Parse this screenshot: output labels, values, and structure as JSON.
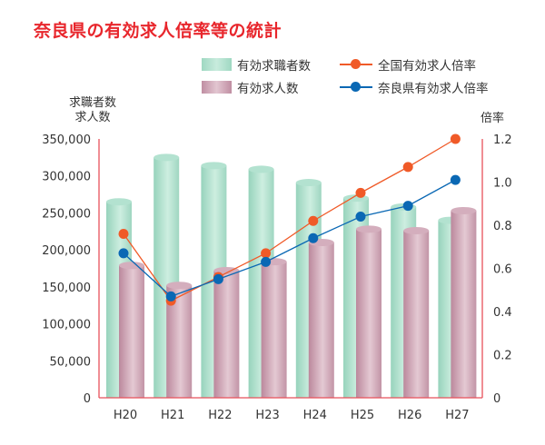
{
  "title": "奈良県の有効求人倍率等の統計",
  "legend": {
    "seekers": "有効求職者数",
    "openings": "有効求人数",
    "national_ratio": "全国有効求人倍率",
    "nara_ratio": "奈良県有効求人倍率"
  },
  "axis_titles": {
    "left_line1": "求職者数",
    "left_line2": "求人数",
    "right": "倍率"
  },
  "colors": {
    "title": "#e8262c",
    "axis": "#e8505a",
    "seekers": "#a8dcc8",
    "openings": "#c9a0b0",
    "national_ratio": "#f05a28",
    "nara_ratio": "#0a68b4"
  },
  "chart_data": {
    "type": "bar",
    "title": "奈良県の有効求人倍率等の統計",
    "xlabel": "",
    "ylabel": "求職者数 求人数",
    "y2label": "倍率",
    "categories": [
      "H20",
      "H21",
      "H22",
      "H23",
      "H24",
      "H25",
      "H26",
      "H27"
    ],
    "ylim": [
      0,
      350000
    ],
    "y2lim": [
      0,
      1.2
    ],
    "yticks": [
      "0",
      "50,000",
      "100,000",
      "150,000",
      "200,000",
      "250,000",
      "300,000",
      "350,000"
    ],
    "y2ticks": [
      "0",
      "0.2",
      "0.4",
      "0.6",
      "0.8",
      "1.0",
      "1.2"
    ],
    "grid": false,
    "legend_position": "top-right",
    "series": [
      {
        "name": "有効求職者数",
        "type": "bar",
        "axis": "left",
        "values": [
          265000,
          325000,
          314000,
          309000,
          291000,
          270000,
          258000,
          240000
        ]
      },
      {
        "name": "有効求人数",
        "type": "bar",
        "axis": "left",
        "values": [
          179000,
          152000,
          172000,
          184000,
          210000,
          228000,
          226000,
          253000
        ]
      },
      {
        "name": "全国有効求人倍率",
        "type": "line",
        "axis": "right",
        "values": [
          0.76,
          0.45,
          0.56,
          0.67,
          0.82,
          0.95,
          1.07,
          1.2
        ]
      },
      {
        "name": "奈良県有効求人倍率",
        "type": "line",
        "axis": "right",
        "values": [
          0.67,
          0.47,
          0.55,
          0.63,
          0.74,
          0.84,
          0.89,
          1.01
        ]
      }
    ]
  }
}
